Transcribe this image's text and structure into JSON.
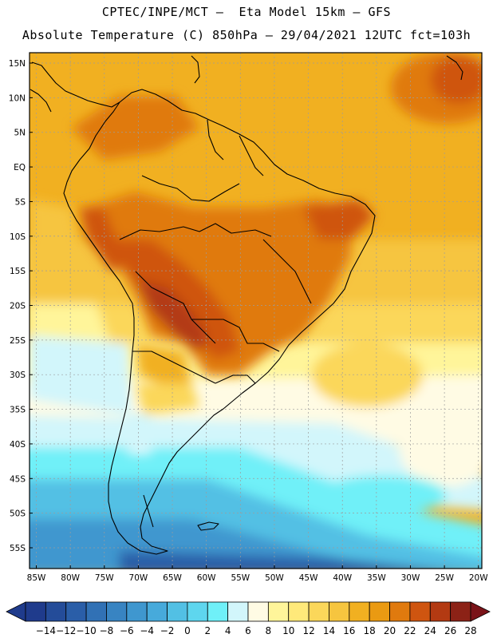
{
  "header": {
    "line1": "CPTEC/INPE/MCT –  Eta Model 15km – GFS",
    "line2": "Absolute Temperature (C) 850hPa – 29/04/2021 12UTC fct=103h"
  },
  "map": {
    "lat_labels": [
      "15N",
      "10N",
      "5N",
      "EQ",
      "5S",
      "10S",
      "15S",
      "20S",
      "25S",
      "30S",
      "35S",
      "40S",
      "45S",
      "50S",
      "55S"
    ],
    "lat_values": [
      15,
      10,
      5,
      0,
      -5,
      -10,
      -15,
      -20,
      -25,
      -30,
      -35,
      -40,
      -45,
      -50,
      -55
    ],
    "lon_labels": [
      "85W",
      "80W",
      "75W",
      "70W",
      "65W",
      "60W",
      "55W",
      "50W",
      "45W",
      "40W",
      "35W",
      "30W",
      "25W",
      "20W"
    ],
    "lon_values": [
      -85,
      -80,
      -75,
      -70,
      -65,
      -60,
      -55,
      -50,
      -45,
      -40,
      -35,
      -30,
      -25,
      -20
    ],
    "lat_range": [
      -58,
      16.5
    ],
    "lon_range": [
      -86,
      -19.5
    ],
    "colorbar": {
      "labels": [
        "-14",
        "-12",
        "-10",
        "-8",
        "-6",
        "-4",
        "-2",
        "0",
        "2",
        "4",
        "6",
        "8",
        "10",
        "12",
        "14",
        "16",
        "18",
        "20",
        "22",
        "24",
        "26",
        "28"
      ],
      "colors": [
        "#1f3b8c",
        "#244c99",
        "#2a5ea8",
        "#3171b5",
        "#3884c2",
        "#3f97cf",
        "#47aadb",
        "#52c0e4",
        "#5ed6ee",
        "#6ff0f8",
        "#d2f6fb",
        "#fffbe4",
        "#fff59a",
        "#ffe97a",
        "#fbd75a",
        "#f6c53f",
        "#f1b021",
        "#ea9a12",
        "#e07a0e",
        "#cf5510",
        "#b33a12",
        "#8c2216"
      ]
    }
  }
}
